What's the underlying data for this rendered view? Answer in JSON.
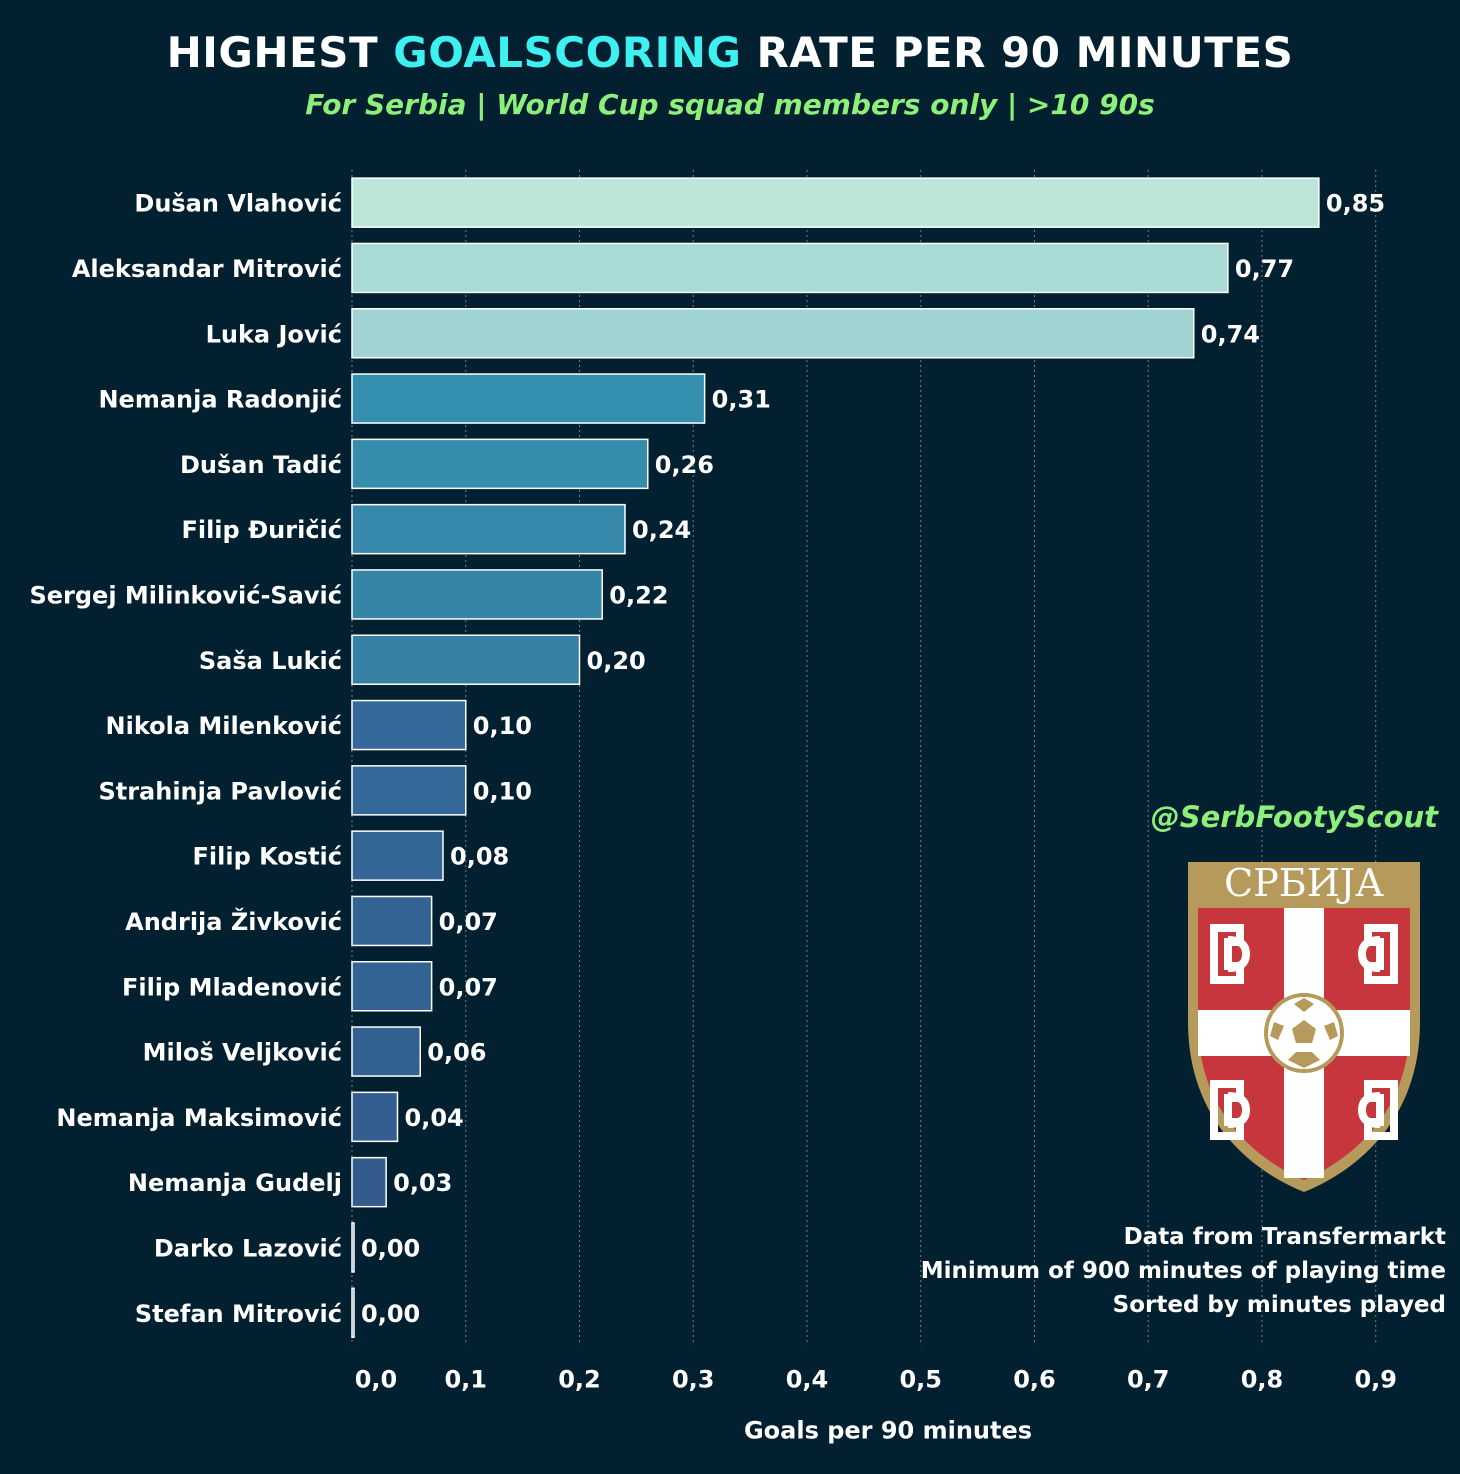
{
  "title": {
    "part1": "HIGHEST ",
    "highlight": "GOALSCORING",
    "part2": " RATE PER 90 MINUTES"
  },
  "subtitle": "For Serbia | World Cup squad members only  | >10 90s",
  "handle": "@SerbFootyScout",
  "crest": {
    "text": "СРБИЈА"
  },
  "notes": {
    "line1": "Data from Transfermarkt",
    "line2": "Minimum of 900 minutes of playing time",
    "line3": "Sorted by minutes played"
  },
  "colors": {
    "background": "#02202f",
    "title_highlight": "#3ff0f0",
    "subtitle": "#8cf07a"
  },
  "chart_data": {
    "type": "bar",
    "orientation": "horizontal",
    "xlabel": "Goals per 90 minutes",
    "ylabel": "",
    "xlim": [
      0,
      0.96
    ],
    "xticks": [
      0.0,
      0.1,
      0.2,
      0.3,
      0.4,
      0.5,
      0.6,
      0.7,
      0.8,
      0.9
    ],
    "xtick_labels": [
      "0,0",
      "0,1",
      "0,2",
      "0,3",
      "0,4",
      "0,5",
      "0,6",
      "0,7",
      "0,8",
      "0,9"
    ],
    "grid": "vertical dotted",
    "categories": [
      "Dušan Vlahović",
      "Aleksandar Mitrović",
      "Luka Jović",
      "Nemanja Radonjić",
      "Dušan Tadić",
      "Filip Đuričić",
      "Sergej Milinković-Savić",
      "Saša Lukić",
      "Nikola Milenković",
      "Strahinja Pavlović",
      "Filip Kostić",
      "Andrija Živković",
      "Filip Mladenović",
      "Miloš Veljković",
      "Nemanja Maksimović",
      "Nemanja Gudelj",
      "Darko Lazović",
      "Stefan Mitrović"
    ],
    "values": [
      0.85,
      0.77,
      0.74,
      0.31,
      0.26,
      0.24,
      0.22,
      0.2,
      0.1,
      0.1,
      0.08,
      0.07,
      0.07,
      0.06,
      0.04,
      0.03,
      0.0,
      0.0
    ],
    "value_labels": [
      "0,85",
      "0,77",
      "0,74",
      "0,31",
      "0,26",
      "0,24",
      "0,22",
      "0,20",
      "0,10",
      "0,10",
      "0,08",
      "0,07",
      "0,07",
      "0,06",
      "0,04",
      "0,03",
      "0,00",
      "0,00"
    ],
    "bar_colors": [
      "#bde6d8",
      "#a8dbd6",
      "#a0d4d2",
      "#3590b0",
      "#358cab",
      "#3689aa",
      "#3684a6",
      "#3681a3",
      "#336898",
      "#336898",
      "#336595",
      "#336392",
      "#336392",
      "#336192",
      "#335e8f",
      "#335c8d",
      "#335a8b",
      "#335a8b"
    ]
  }
}
